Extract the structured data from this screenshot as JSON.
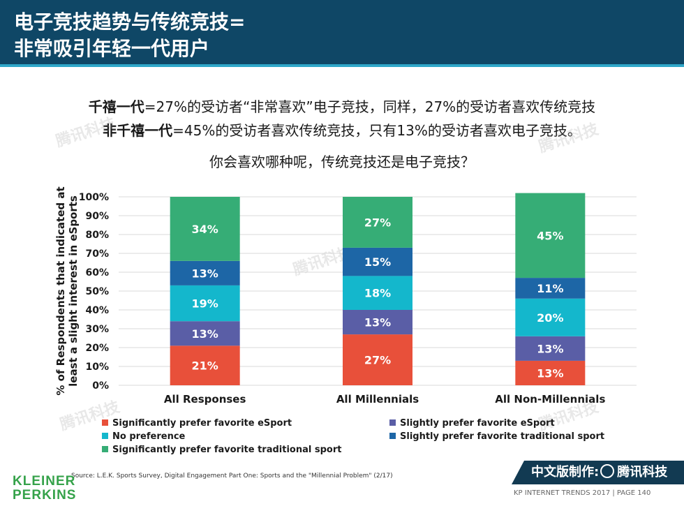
{
  "header": {
    "title_line1": "电子竞技趋势与传统竞技=",
    "title_line2": "非常吸引年轻一代用户"
  },
  "subtitle": {
    "line1_bold": "千禧一代",
    "line1_rest": "=27%的受访者“非常喜欢”电子竞技，同样，27%的受访者喜欢传统竞技",
    "line2_bold": "非千禧一代",
    "line2_rest": "=45%的受访者喜欢传统竞技，只有13%的受访者喜欢电子竞技。"
  },
  "question": "你会喜欢哪种呢，传统竞技还是电子竞技？",
  "chart_data": {
    "type": "bar",
    "stacked": true,
    "ylabel": "% of Respondents that indicated at least a slight interest in eSports",
    "ylabel_lines": [
      "% of Respondents that indicated at",
      "least a slight interest in eSports"
    ],
    "ylim": [
      0,
      100
    ],
    "yticks": [
      "0%",
      "10%",
      "20%",
      "30%",
      "40%",
      "50%",
      "60%",
      "70%",
      "80%",
      "90%",
      "100%"
    ],
    "categories": [
      "All Responses",
      "All Millennials",
      "All Non-Millennials"
    ],
    "series": [
      {
        "name": "Significantly prefer favorite eSport",
        "color": "#e8503a",
        "values": [
          21,
          27,
          13
        ]
      },
      {
        "name": "Slightly prefer favorite eSport",
        "color": "#5a5ea6",
        "values": [
          13,
          13,
          13
        ]
      },
      {
        "name": "No preference",
        "color": "#14b7cc",
        "values": [
          19,
          18,
          20
        ]
      },
      {
        "name": "Slightly prefer favorite traditional sport",
        "color": "#1d66a6",
        "values": [
          13,
          15,
          11
        ]
      },
      {
        "name": "Significantly prefer favorite traditional sport",
        "color": "#36ad76",
        "values": [
          34,
          27,
          45
        ]
      }
    ],
    "data_labels": [
      [
        "21%",
        "13%",
        "19%",
        "13%",
        "34%"
      ],
      [
        "27%",
        "13%",
        "18%",
        "15%",
        "27%"
      ],
      [
        "13%",
        "13%",
        "20%",
        "11%",
        "45%"
      ]
    ],
    "legend": [
      "Significantly prefer favorite eSport",
      "Slightly prefer favorite eSport",
      "No preference",
      "Slightly prefer favorite traditional sport",
      "Significantly prefer favorite traditional sport"
    ]
  },
  "source": "Source: L.E.K. Sports Survey, Digital Engagement Part One: Sports and the \"Millennial Problem\" (2/17)",
  "logo": {
    "line1": "KLEINER",
    "line2": "PERKINS"
  },
  "banner": {
    "label": "中文版制作:",
    "brand": "腾讯科技"
  },
  "footer": "KP INTERNET TRENDS 2017  |  PAGE 140",
  "watermark_text": "腾讯科技"
}
